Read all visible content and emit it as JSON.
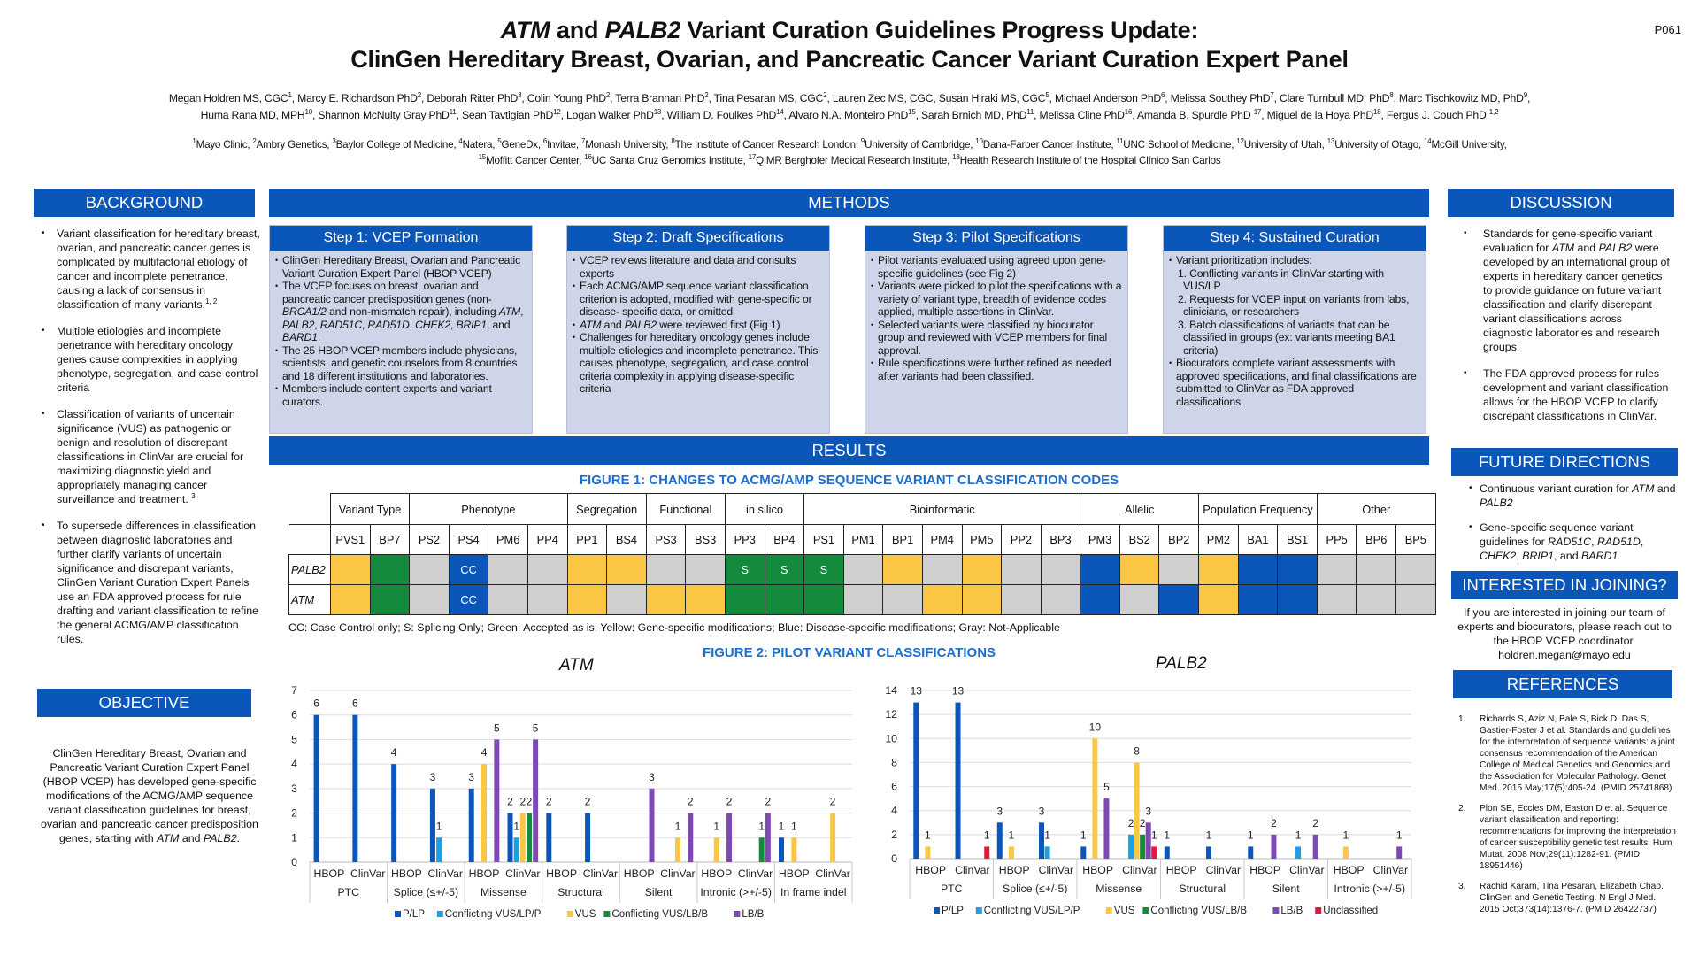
{
  "poster_id": "P061",
  "title": {
    "line1_gene1": "ATM",
    "line1_mid": " and ",
    "line1_gene2": "PALB2",
    "line1_rest": " Variant Curation Guidelines Progress Update:",
    "line2": "ClinGen Hereditary Breast, Ovarian, and Pancreatic Cancer Variant Curation Expert Panel"
  },
  "authors_line1": [
    [
      "Megan Holdren MS, CGC",
      "1"
    ],
    [
      "Marcy E. Richardson PhD",
      "2"
    ],
    [
      "Deborah Ritter PhD",
      "3"
    ],
    [
      "Colin Young PhD",
      "2"
    ],
    [
      "Terra Brannan PhD",
      "2"
    ],
    [
      "Tina Pesaran MS, CGC",
      "2"
    ],
    [
      "Lauren Zec MS, CGC",
      ""
    ],
    [
      "Susan Hiraki MS, CGC",
      "5"
    ],
    [
      "Michael Anderson PhD",
      "6"
    ],
    [
      "Melissa Southey PhD",
      "7"
    ],
    [
      "Clare Turnbull MD, PhD",
      "8"
    ],
    [
      "Marc Tischkowitz MD, PhD",
      "9"
    ]
  ],
  "authors_line2": [
    [
      "Huma Rana MD, MPH",
      "10"
    ],
    [
      "Shannon McNulty Gray PhD",
      "11"
    ],
    [
      "Sean Tavtigian PhD",
      "12"
    ],
    [
      "Logan Walker PhD",
      "13"
    ],
    [
      "William D. Foulkes PhD",
      "14"
    ],
    [
      "Alvaro N.A. Monteiro PhD",
      "15"
    ],
    [
      "Sarah Brnich MD, PhD",
      "11"
    ],
    [
      "Melissa Cline PhD",
      "16"
    ],
    [
      "Amanda B. Spurdle PhD ",
      "17"
    ],
    [
      "Miguel de la Hoya PhD",
      "18"
    ],
    [
      "Fergus J. Couch PhD ",
      "1,2"
    ]
  ],
  "affiliations_line1": [
    [
      "1",
      "Mayo Clinic"
    ],
    [
      "2",
      "Ambry Genetics"
    ],
    [
      "3",
      "Baylor College of Medicine"
    ],
    [
      "4",
      "Natera"
    ],
    [
      "5",
      "GeneDx"
    ],
    [
      "6",
      "Invitae"
    ],
    [
      "7",
      "Monash University"
    ],
    [
      "8",
      "The Institute of Cancer Research London"
    ],
    [
      "9",
      "University of Cambridge"
    ],
    [
      "10",
      "Dana-Farber Cancer Institute"
    ],
    [
      "11",
      "UNC School of Medicine"
    ],
    [
      "12",
      "University of Utah"
    ],
    [
      "13",
      "University of Otago"
    ],
    [
      "14",
      "McGill University"
    ]
  ],
  "affiliations_line2": [
    [
      "15",
      "Moffitt Cancer Center"
    ],
    [
      "16",
      "UC Santa Cruz Genomics Institute"
    ],
    [
      "17",
      "QIMR Berghofer Medical Research Institute"
    ],
    [
      "18",
      "Health Research Institute of the Hospital Clínico San Carlos"
    ]
  ],
  "background": {
    "heading": "BACKGROUND",
    "items": [
      {
        "text": "Variant classification for hereditary breast, ovarian, and pancreatic cancer genes is complicated by multifactorial etiology of cancer and incomplete penetrance, causing a lack of consensus in classification of many variants.",
        "sup": "1, 2"
      },
      {
        "text": "Multiple etiologies and incomplete penetrance with hereditary oncology genes cause complexities in applying phenotype, segregation, and case control criteria",
        "sup": ""
      },
      {
        "text": "Classification of variants of uncertain significance (VUS) as pathogenic or benign and resolution of discrepant classifications in ClinVar are crucial for maximizing diagnostic yield and appropriately managing cancer surveillance and treatment. ",
        "sup": "3"
      },
      {
        "text": "To supersede differences in classification between diagnostic laboratories and further clarify variants of uncertain significance and discrepant variants, ClinGen Variant Curation Expert Panels use an FDA approved process for rule drafting and variant classification to refine the general ACMG/AMP classification rules.",
        "sup": ""
      }
    ]
  },
  "objective": {
    "heading": "OBJECTIVE",
    "text_before": "ClinGen Hereditary Breast, Ovarian and Pancreatic Variant Curation Expert Panel (HBOP VCEP) has developed gene-specific modifications of the ACMG/AMP sequence variant classification guidelines for breast, ovarian and pancreatic cancer predisposition genes, starting with ",
    "gene1": "ATM",
    "mid": " and ",
    "gene2": "PALB2",
    "end": "."
  },
  "methods": {
    "heading": "METHODS",
    "steps": [
      {
        "title": "Step 1: VCEP Formation",
        "bullets": [
          "ClinGen Hereditary Breast, Ovarian and Pancreatic Variant Curation Expert Panel (HBOP VCEP)",
          " The VCEP focuses on breast, ovarian and pancreatic cancer predisposition genes (non-BRCA1/2 and non-mismatch repair), including ATM, PALB2, RAD51C, RAD51D, CHEK2, BRIP1, and BARD1.",
          "The 25 HBOP VCEP members include physicians, scientists, and genetic counselors from 8 countries and 18 different institutions and laboratories.",
          "Members include content experts and variant curators."
        ]
      },
      {
        "title": "Step 2: Draft Specifications",
        "bullets": [
          "VCEP reviews literature and data and consults experts",
          "Each ACMG/AMP sequence variant classification criterion is adopted, modified with gene-specific or disease- specific data, or omitted",
          "ATM and PALB2 were reviewed first (Fig 1)",
          "Challenges for hereditary oncology genes include multiple etiologies and incomplete penetrance. This causes phenotype, segregation, and case control criteria complexity in applying disease-specific criteria"
        ]
      },
      {
        "title": "Step 3: Pilot Specifications",
        "bullets": [
          "Pilot variants evaluated using agreed upon gene-specific guidelines (see Fig 2)",
          "Variants were picked to pilot the specifications with a variety of variant type, breadth of evidence codes applied, multiple assertions in ClinVar.",
          "Selected variants were classified by biocurator group and reviewed with VCEP members for final approval.",
          "Rule specifications were further refined as needed after variants had been classified."
        ]
      },
      {
        "title": "Step 4: Sustained Curation",
        "bullets": [
          "Variant prioritization includes:",
          "#1. Conflicting variants in ClinVar starting with VUS/LP",
          "#2. Requests for VCEP input on variants from labs, clinicians, or researchers",
          "#3. Batch classifications of variants that can be classified in groups (ex: variants meeting BA1 criteria)",
          "Biocurators complete variant assessments with approved specifications, and final classifications are submitted to ClinVar as FDA approved classifications."
        ]
      }
    ]
  },
  "results": {
    "heading": "RESULTS",
    "figure1": {
      "title": "FIGURE 1: CHANGES TO ACMG/AMP SEQUENCE VARIANT CLASSIFICATION CODES",
      "groups": [
        {
          "name": "Variant Type",
          "span": 2
        },
        {
          "name": "Phenotype",
          "span": 4
        },
        {
          "name": "Segregation",
          "span": 2
        },
        {
          "name": "Functional",
          "span": 2
        },
        {
          "name": "in silico",
          "span": 2
        },
        {
          "name": "Bioinformatic",
          "span": 7
        },
        {
          "name": "Allelic",
          "span": 3
        },
        {
          "name": "Population Frequency",
          "span": 3
        },
        {
          "name": "Other",
          "span": 3
        }
      ],
      "codes": [
        "PVS1",
        "BP7",
        "PS2",
        "PS4",
        "PM6",
        "PP4",
        "PP1",
        "BS4",
        "PS3",
        "BS3",
        "PP3",
        "BP4",
        "PS1",
        "PM1",
        "BP1",
        "PM4",
        "PM5",
        "PP2",
        "BP3",
        "PM3",
        "BS2",
        "BP2",
        "PM2",
        "BA1",
        "BS1",
        "PP5",
        "BP6",
        "BP5"
      ],
      "rows": [
        {
          "gene": "PALB2",
          "status": [
            "Y",
            "G",
            "X",
            "B",
            "X",
            "X",
            "Y",
            "Y",
            "X",
            "X",
            "G",
            "G",
            "G",
            "X",
            "Y",
            "X",
            "Y",
            "X",
            "X",
            "B",
            "Y",
            "X",
            "Y",
            "B",
            "B",
            "X",
            "X",
            "X"
          ],
          "labels": [
            "",
            "",
            "",
            "CC",
            "",
            "",
            "",
            "",
            "",
            "",
            "S",
            "S",
            "S",
            "",
            "",
            "",
            "",
            "",
            "",
            "",
            "",
            "",
            "",
            "",
            "",
            "",
            "",
            ""
          ]
        },
        {
          "gene": "ATM",
          "status": [
            "Y",
            "G",
            "X",
            "B",
            "X",
            "X",
            "Y",
            "X",
            "Y",
            "Y",
            "G",
            "G",
            "G",
            "X",
            "X",
            "Y",
            "Y",
            "X",
            "X",
            "B",
            "X",
            "B",
            "Y",
            "B",
            "B",
            "X",
            "X",
            "X"
          ],
          "labels": [
            "",
            "",
            "",
            "CC",
            "",
            "",
            "",
            "",
            "",
            "",
            "",
            "",
            "",
            "",
            "",
            "",
            "",
            "",
            "",
            "",
            "",
            "",
            "",
            "",
            "",
            "",
            "",
            ""
          ]
        }
      ],
      "legend": "CC: Case Control only; S: Splicing Only; Green: Accepted as is; Yellow: Gene-specific modifications; Blue: Disease-specific modifications; Gray: Not-Applicable",
      "status_colors": {
        "Y": "#fcc645",
        "G": "#138a3c",
        "B": "#0b57b9",
        "X": "#cfcfcf"
      }
    },
    "figure2_title": "FIGURE 2: PILOT VARIANT CLASSIFICATIONS"
  },
  "chart_data": [
    {
      "type": "bar",
      "title": "ATM",
      "ylim": [
        0,
        7
      ],
      "yticks": [
        0,
        1,
        2,
        3,
        4,
        5,
        6,
        7
      ],
      "grid": true,
      "legend_position": "bottom",
      "groups": [
        "PTC",
        "Splice (≤+/-5)",
        "Missense",
        "Structural",
        "Silent",
        "Intronic (>+/-5)",
        "In frame indel"
      ],
      "subcategories": [
        "HBOP",
        "ClinVar"
      ],
      "series": [
        {
          "name": "P/LP",
          "color": "#0b57b9",
          "values": [
            [
              6,
              6
            ],
            [
              4,
              3
            ],
            [
              3,
              2
            ],
            [
              2,
              2
            ],
            [
              0,
              0
            ],
            [
              0,
              0
            ],
            [
              1,
              0
            ]
          ]
        },
        {
          "name": "Conflicting VUS/LP/P",
          "color": "#1ba1e2",
          "values": [
            [
              0,
              0
            ],
            [
              0,
              1
            ],
            [
              0,
              1
            ],
            [
              0,
              0
            ],
            [
              0,
              0
            ],
            [
              0,
              0
            ],
            [
              0,
              0
            ]
          ]
        },
        {
          "name": "VUS",
          "color": "#fcc645",
          "values": [
            [
              0,
              0
            ],
            [
              0,
              0
            ],
            [
              4,
              2
            ],
            [
              0,
              0
            ],
            [
              0,
              1
            ],
            [
              1,
              0
            ],
            [
              1,
              2
            ]
          ]
        },
        {
          "name": "Conflicting VUS/LB/B",
          "color": "#138a3c",
          "values": [
            [
              0,
              0
            ],
            [
              0,
              0
            ],
            [
              0,
              2
            ],
            [
              0,
              0
            ],
            [
              0,
              0
            ],
            [
              0,
              1
            ],
            [
              0,
              0
            ]
          ]
        },
        {
          "name": "LB/B",
          "color": "#7f49b5",
          "values": [
            [
              0,
              0
            ],
            [
              0,
              0
            ],
            [
              5,
              5
            ],
            [
              0,
              0
            ],
            [
              3,
              2
            ],
            [
              2,
              2
            ],
            [
              0,
              0
            ]
          ]
        }
      ]
    },
    {
      "type": "bar",
      "title": "PALB2",
      "ylim": [
        0,
        14
      ],
      "yticks": [
        0,
        2,
        4,
        6,
        8,
        10,
        12,
        14
      ],
      "grid": true,
      "legend_position": "bottom",
      "groups": [
        "PTC",
        "Splice (≤+/-5)",
        "Missense",
        "Structural",
        "Silent",
        "Intronic (>+/-5)"
      ],
      "subcategories": [
        "HBOP",
        "ClinVar"
      ],
      "series": [
        {
          "name": "P/LP",
          "color": "#0b57b9",
          "values": [
            [
              13,
              13
            ],
            [
              3,
              3
            ],
            [
              1,
              0
            ],
            [
              1,
              1
            ],
            [
              1,
              0
            ],
            [
              0,
              0
            ]
          ]
        },
        {
          "name": "Conflicting VUS/LP/P",
          "color": "#1ba1e2",
          "values": [
            [
              0,
              0
            ],
            [
              0,
              1
            ],
            [
              0,
              2
            ],
            [
              0,
              0
            ],
            [
              0,
              1
            ],
            [
              0,
              0
            ]
          ]
        },
        {
          "name": "VUS",
          "color": "#fcc645",
          "values": [
            [
              1,
              0
            ],
            [
              1,
              0
            ],
            [
              10,
              8
            ],
            [
              0,
              0
            ],
            [
              0,
              0
            ],
            [
              1,
              0
            ]
          ]
        },
        {
          "name": "Conflicting VUS/LB/B",
          "color": "#138a3c",
          "values": [
            [
              0,
              0
            ],
            [
              0,
              0
            ],
            [
              0,
              2
            ],
            [
              0,
              0
            ],
            [
              0,
              0
            ],
            [
              0,
              0
            ]
          ]
        },
        {
          "name": "LB/B",
          "color": "#7f49b5",
          "values": [
            [
              0,
              0
            ],
            [
              0,
              0
            ],
            [
              5,
              3
            ],
            [
              0,
              0
            ],
            [
              2,
              2
            ],
            [
              0,
              1
            ]
          ]
        },
        {
          "name": "Unclassified",
          "color": "#e31937",
          "values": [
            [
              0,
              1
            ],
            [
              0,
              0
            ],
            [
              0,
              1
            ],
            [
              0,
              0
            ],
            [
              0,
              0
            ],
            [
              0,
              0
            ]
          ]
        }
      ]
    }
  ],
  "discussion": {
    "heading": "DISCUSSION",
    "items": [
      "Standards for gene-specific variant evaluation for ATM and PALB2 were developed by an international group of experts in hereditary cancer genetics to provide guidance on future variant classification and clarify discrepant variant classifications across diagnostic laboratories and research groups.",
      "The FDA approved process for rules development and variant classification allows for the HBOP VCEP to clarify discrepant classifications in ClinVar."
    ]
  },
  "future": {
    "heading": "FUTURE DIRECTIONS",
    "items": [
      "Continuous variant curation for ATM and PALB2",
      "Gene-specific sequence variant guidelines for RAD51C, RAD51D, CHEK2, BRIP1, and BARD1"
    ]
  },
  "join": {
    "heading": "INTERESTED IN JOINING?",
    "text": "If you are interested in joining our team of experts and biocurators, please reach out to the HBOP VCEP coordinator. holdren.megan@mayo.edu"
  },
  "references": {
    "heading": "REFERENCES",
    "items": [
      {
        "num": "1.",
        "text": "Richards S, Aziz N, Bale S, Bick D, Das S, Gastier-Foster J et al. Standards and guidelines for the interpretation of sequence variants: a joint consensus recommendation of the American College of Medical Genetics and Genomics and the Association for Molecular Pathology. Genet Med. 2015 May;17(5):405-24. (PMID 25741868)"
      },
      {
        "num": "2.",
        "text": "Plon SE, Eccles DM, Easton D et al. Sequence variant classification and reporting: recommendations for improving the interpretation of cancer susceptibility genetic test results. Hum Mutat. 2008 Nov;29(11):1282-91. (PMID 18951446)"
      },
      {
        "num": "3.",
        "text": "Rachid Karam, Tina Pesaran, Elizabeth Chao. ClinGen and Genetic Testing. N Engl J Med. 2015 Oct;373(14):1376-7. (PMID 26422737)"
      }
    ]
  }
}
